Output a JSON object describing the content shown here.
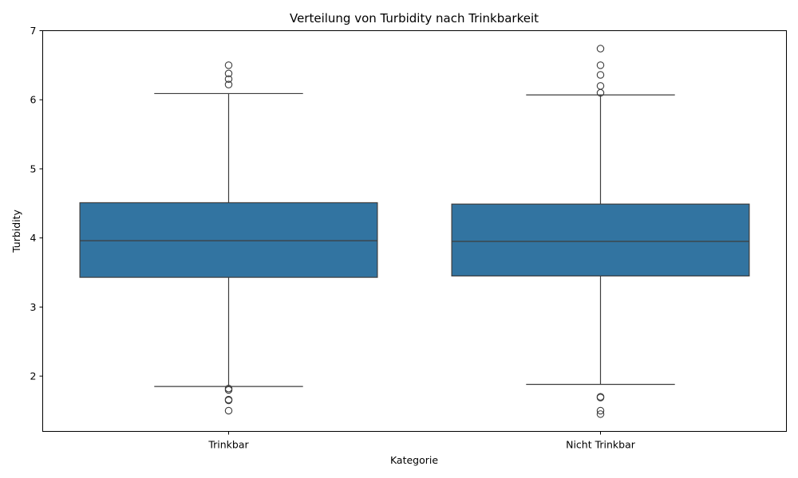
{
  "chart_data": {
    "type": "box",
    "title": "Verteilung von Turbidity nach Trinkbarkeit",
    "xlabel": "Kategorie",
    "ylabel": "Turbidity",
    "ylim": [
      1.2,
      7.0
    ],
    "yticks": [
      2,
      3,
      4,
      5,
      6,
      7
    ],
    "yticks_labels": [
      "2",
      "3",
      "4",
      "5",
      "6",
      "7"
    ],
    "grid": false,
    "colors": {
      "box_fill": "#3274a1",
      "line": "#3d3d3d"
    },
    "categories": [
      "Trinkbar",
      "Nicht Trinkbar"
    ],
    "boxes": [
      {
        "category": "Trinkbar",
        "whisker_low": 1.85,
        "q1": 3.43,
        "median": 3.96,
        "q3": 4.51,
        "whisker_high": 6.09,
        "outliers": [
          6.5,
          6.38,
          6.3,
          6.22,
          1.82,
          1.8,
          1.66,
          1.65,
          1.5
        ]
      },
      {
        "category": "Nicht Trinkbar",
        "whisker_low": 1.88,
        "q1": 3.45,
        "median": 3.95,
        "q3": 4.49,
        "whisker_high": 6.07,
        "outliers": [
          6.74,
          6.5,
          6.36,
          6.2,
          6.1,
          1.7,
          1.69,
          1.5,
          1.45
        ]
      }
    ]
  }
}
